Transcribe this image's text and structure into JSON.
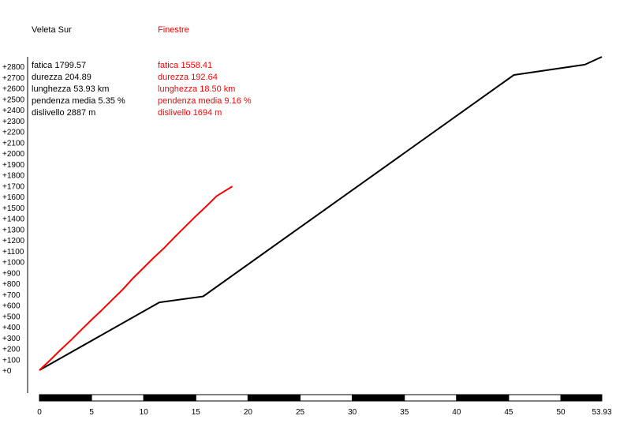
{
  "chart_data": {
    "type": "line",
    "xlim": [
      0,
      53.93
    ],
    "ylim": [
      0,
      2887
    ],
    "y_ticks": [
      "+0",
      "+100",
      "+200",
      "+300",
      "+400",
      "+500",
      "+600",
      "+700",
      "+800",
      "+900",
      "+1000",
      "+1100",
      "+1200",
      "+1300",
      "+1400",
      "+1500",
      "+1600",
      "+1700",
      "+1800",
      "+1900",
      "+2000",
      "+2100",
      "+2200",
      "+2300",
      "+2400",
      "+2500",
      "+2600",
      "+2700",
      "+2800"
    ],
    "x_ticks": [
      "0",
      "5",
      "10",
      "15",
      "20",
      "25",
      "30",
      "35",
      "40",
      "45",
      "50",
      "53.93"
    ],
    "grid": false,
    "series": [
      {
        "name": "Veleta Sur",
        "color": "#000000",
        "x": [
          0,
          11.5,
          15.7,
          45.5,
          52.3,
          53.93
        ],
        "y": [
          0,
          625,
          680,
          2720,
          2815,
          2887
        ],
        "stats": [
          "fatica 1799.57",
          "durezza 204.89",
          "lunghezza 53.93 km",
          "pendenza media 5.35 %",
          "dislivello 2887 m"
        ]
      },
      {
        "name": "Finestre",
        "color": "#ff0000",
        "x": [
          0,
          1,
          2,
          3,
          4,
          5,
          6,
          7,
          8,
          9,
          10,
          11,
          12,
          13,
          14,
          15,
          16,
          17,
          18.5
        ],
        "y": [
          0,
          90,
          185,
          275,
          370,
          465,
          555,
          650,
          745,
          850,
          945,
          1040,
          1130,
          1230,
          1325,
          1420,
          1510,
          1605,
          1694
        ],
        "stats": [
          "fatica 1558.41",
          "durezza 192.64",
          "lunghezza 18.50 km",
          "pendenza media 9.16 %",
          "dislivello 1694 m"
        ]
      }
    ]
  }
}
